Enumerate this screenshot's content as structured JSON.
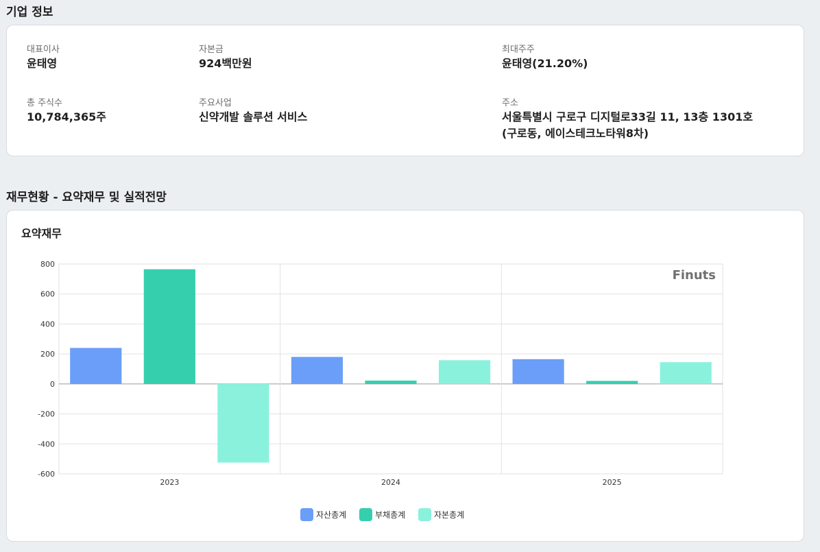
{
  "company": {
    "section_title": "기업 정보",
    "ceo_label": "대표이사",
    "ceo_value": "윤태영",
    "capital_label": "자본금",
    "capital_value": "924백만원",
    "major_label": "최대주주",
    "major_value": "윤태영(21.20%)",
    "shares_label": "총 주식수",
    "shares_value": "10,784,365주",
    "business_label": "주요사업",
    "business_value": "신약개발 솔루션 서비스",
    "address_label": "주소",
    "address_line1": "서울특별시 구로구 디지털로33길 11, 13층 1301호",
    "address_line2": "(구로동, 에이스테크노타워8차)"
  },
  "finance": {
    "section_title": "재무현황 - 요약재무 및 실적전망",
    "card_title": "요약재무",
    "watermark": "Finuts"
  },
  "chart_data": {
    "type": "bar",
    "title": "요약재무",
    "categories": [
      "2023",
      "2024",
      "2025"
    ],
    "series": [
      {
        "name": "자산총계",
        "values": [
          240,
          180,
          165
        ],
        "color": "#6b9ef8"
      },
      {
        "name": "부채총계",
        "values": [
          765,
          22,
          20
        ],
        "color": "#35cfae"
      },
      {
        "name": "자본총계",
        "values": [
          -525,
          158,
          145
        ],
        "color": "#8af2dc"
      }
    ],
    "ylim": [
      -600,
      800
    ],
    "yticks": [
      800,
      600,
      400,
      200,
      0,
      -200,
      -400,
      -600
    ],
    "grid": true,
    "legend_position": "bottom"
  }
}
